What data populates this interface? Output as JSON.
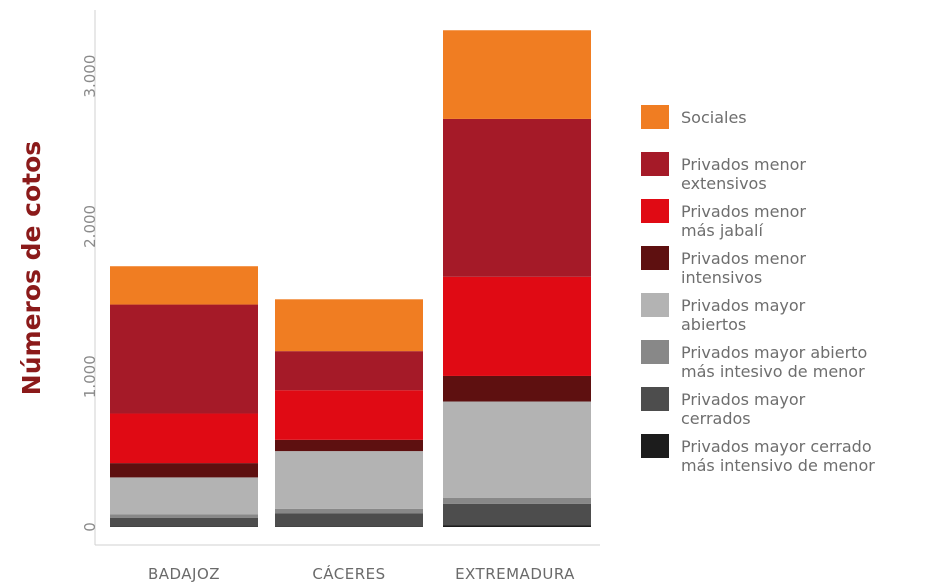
{
  "chart_data": {
    "type": "bar",
    "stacked": true,
    "categories": [
      "BADAJOZ",
      "CÁCERES",
      "EXTREMADURA"
    ],
    "ylabel": "Números de cotos",
    "xlabel": "",
    "ylim": [
      0,
      3300
    ],
    "yticks": [
      0,
      1000,
      2000,
      3000
    ],
    "ytick_labels": [
      "0",
      "1.000",
      "2.000",
      "3.000"
    ],
    "legend_position": "right",
    "series": [
      {
        "name": "Privados mayor cerrado más intensivo de menor",
        "name_lines": [
          "Privados mayor  cerrado",
          "más intensivo de menor"
        ],
        "color": "#1c1c1c",
        "values": [
          5,
          5,
          10
        ]
      },
      {
        "name": "Privados mayor cerrados",
        "name_lines": [
          "Privados mayor",
          "cerrados"
        ],
        "color": "#4d4d4d",
        "values": [
          55,
          85,
          145
        ]
      },
      {
        "name": "Privados mayor abierto más intesivo de menor",
        "name_lines": [
          "Privados mayor abierto",
          "más intesivo de menor"
        ],
        "color": "#888888",
        "values": [
          25,
          30,
          40
        ]
      },
      {
        "name": "Privados mayor abiertos",
        "name_lines": [
          "Privados mayor",
          "abiertos"
        ],
        "color": "#b3b3b3",
        "values": [
          245,
          385,
          640
        ]
      },
      {
        "name": "Privados menor intensivos",
        "name_lines": [
          "Privados menor",
          "intensivos"
        ],
        "color": "#5e1010",
        "values": [
          95,
          75,
          170
        ]
      },
      {
        "name": "Privados menor más jabalí",
        "name_lines": [
          "Privados menor",
          "más jabalí"
        ],
        "color": "#e00a14",
        "values": [
          330,
          330,
          660
        ]
      },
      {
        "name": "Privados menor extensivos",
        "name_lines": [
          "Privados menor",
          "extensivos"
        ],
        "color": "#a51a28",
        "values": [
          725,
          260,
          1050
        ]
      },
      {
        "name": "Sociales",
        "name_lines": [
          "Sociales"
        ],
        "color": "#f07d22",
        "values": [
          255,
          345,
          590
        ]
      }
    ]
  }
}
